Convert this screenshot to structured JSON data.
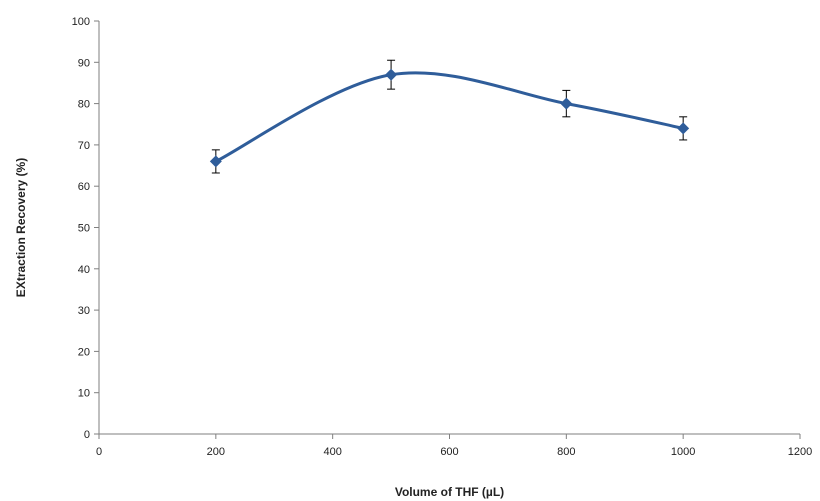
{
  "chart_data": {
    "type": "line",
    "title": "",
    "xlabel": "Volume of THF (µL)",
    "ylabel": "EXtraction Recovery (%)",
    "xlim": [
      0,
      1200
    ],
    "ylim": [
      0,
      100
    ],
    "xticks": [
      0,
      200,
      400,
      600,
      800,
      1000,
      1200
    ],
    "yticks": [
      0,
      10,
      20,
      30,
      40,
      50,
      60,
      70,
      80,
      90,
      100
    ],
    "grid": false,
    "smooth": true,
    "marker": "diamond",
    "color": "#2f5d9a",
    "series": [
      {
        "x": [
          200,
          500,
          800,
          1000
        ],
        "y": [
          66,
          87,
          80,
          74
        ],
        "error": [
          2.8,
          3.5,
          3.2,
          2.8
        ]
      }
    ]
  }
}
